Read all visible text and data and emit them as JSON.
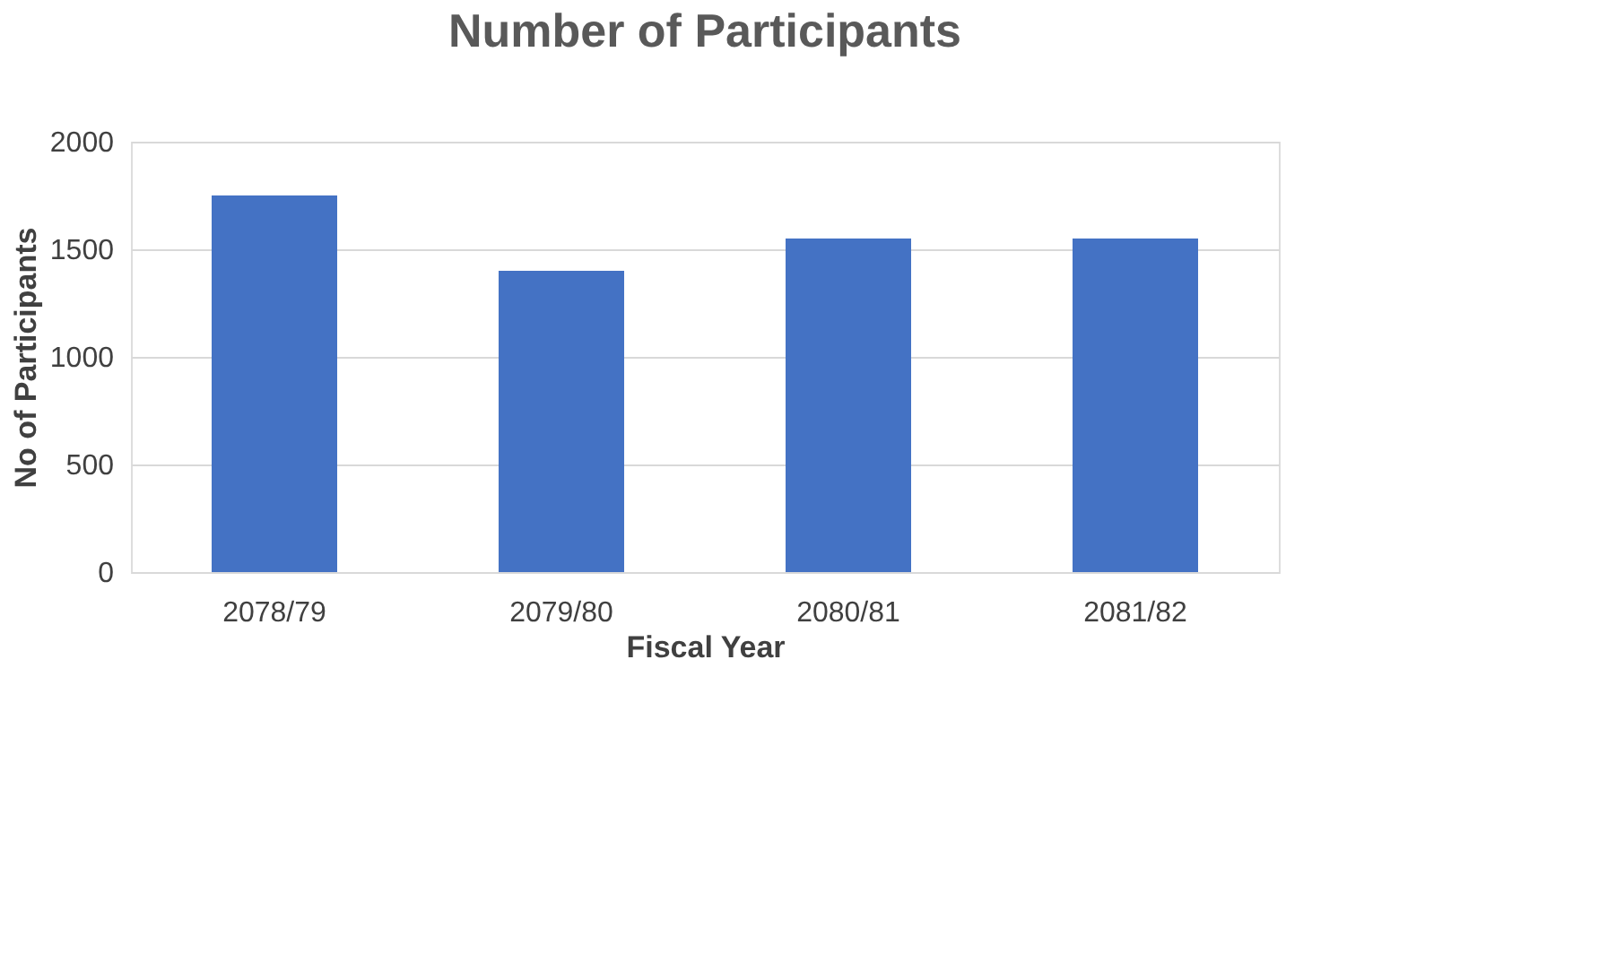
{
  "chart_data": {
    "type": "bar",
    "title": "Number of Participants",
    "xlabel": "Fiscal Year",
    "ylabel": "No of Participants",
    "categories": [
      "2078/79",
      "2079/80",
      "2080/81",
      "2081/82"
    ],
    "values": [
      1750,
      1400,
      1550,
      1550
    ],
    "color": "#4472c4",
    "ylim": [
      0,
      2000
    ],
    "yticks": [
      0,
      500,
      1000,
      1500,
      2000
    ],
    "grid": "y"
  }
}
